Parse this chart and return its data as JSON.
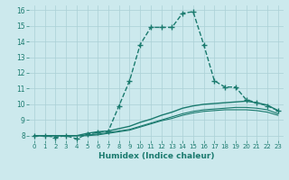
{
  "xlabel": "Humidex (Indice chaleur)",
  "background_color": "#cce9ed",
  "grid_color": "#aad0d5",
  "line_color": "#1a7a6e",
  "xlim": [
    -0.5,
    23.5
  ],
  "ylim": [
    7.7,
    16.3
  ],
  "xticks": [
    0,
    1,
    2,
    3,
    4,
    5,
    6,
    7,
    8,
    9,
    10,
    11,
    12,
    13,
    14,
    15,
    16,
    17,
    18,
    19,
    20,
    21,
    22,
    23
  ],
  "yticks": [
    8,
    9,
    10,
    11,
    12,
    13,
    14,
    15,
    16
  ],
  "series": [
    {
      "x": [
        0,
        1,
        2,
        3,
        4,
        5,
        6,
        7,
        8,
        9,
        10,
        11,
        12,
        13,
        14,
        15,
        16,
        17,
        18,
        19,
        20,
        21,
        22,
        23
      ],
      "y": [
        8.0,
        8.0,
        7.9,
        8.0,
        7.8,
        8.1,
        8.2,
        8.3,
        9.9,
        11.5,
        13.8,
        14.9,
        14.9,
        14.9,
        15.8,
        15.9,
        13.8,
        11.5,
        11.1,
        11.1,
        10.3,
        10.1,
        9.9,
        9.6
      ],
      "marker": "+",
      "markersize": 4,
      "markeredgewidth": 1.0,
      "linewidth": 1.0,
      "linestyle": "--"
    },
    {
      "x": [
        0,
        1,
        2,
        3,
        4,
        5,
        6,
        7,
        8,
        9,
        10,
        11,
        12,
        13,
        14,
        15,
        16,
        17,
        18,
        19,
        20,
        21,
        22,
        23
      ],
      "y": [
        8.0,
        8.0,
        8.0,
        8.0,
        8.0,
        8.15,
        8.25,
        8.3,
        8.45,
        8.6,
        8.85,
        9.05,
        9.3,
        9.5,
        9.75,
        9.9,
        10.0,
        10.05,
        10.1,
        10.15,
        10.2,
        10.1,
        9.95,
        9.6
      ],
      "marker": null,
      "linewidth": 1.0,
      "linestyle": "-"
    },
    {
      "x": [
        0,
        1,
        2,
        3,
        4,
        5,
        6,
        7,
        8,
        9,
        10,
        11,
        12,
        13,
        14,
        15,
        16,
        17,
        18,
        19,
        20,
        21,
        22,
        23
      ],
      "y": [
        8.0,
        8.0,
        8.0,
        8.0,
        8.0,
        8.05,
        8.1,
        8.2,
        8.3,
        8.4,
        8.6,
        8.8,
        9.0,
        9.2,
        9.4,
        9.55,
        9.65,
        9.7,
        9.75,
        9.8,
        9.8,
        9.75,
        9.65,
        9.4
      ],
      "marker": null,
      "linewidth": 0.8,
      "linestyle": "-"
    },
    {
      "x": [
        0,
        1,
        2,
        3,
        4,
        5,
        6,
        7,
        8,
        9,
        10,
        11,
        12,
        13,
        14,
        15,
        16,
        17,
        18,
        19,
        20,
        21,
        22,
        23
      ],
      "y": [
        8.0,
        8.0,
        8.0,
        8.0,
        8.0,
        8.0,
        8.05,
        8.15,
        8.25,
        8.35,
        8.55,
        8.75,
        8.95,
        9.1,
        9.3,
        9.45,
        9.55,
        9.6,
        9.65,
        9.65,
        9.65,
        9.6,
        9.5,
        9.3
      ],
      "marker": null,
      "linewidth": 0.8,
      "linestyle": "-"
    }
  ]
}
